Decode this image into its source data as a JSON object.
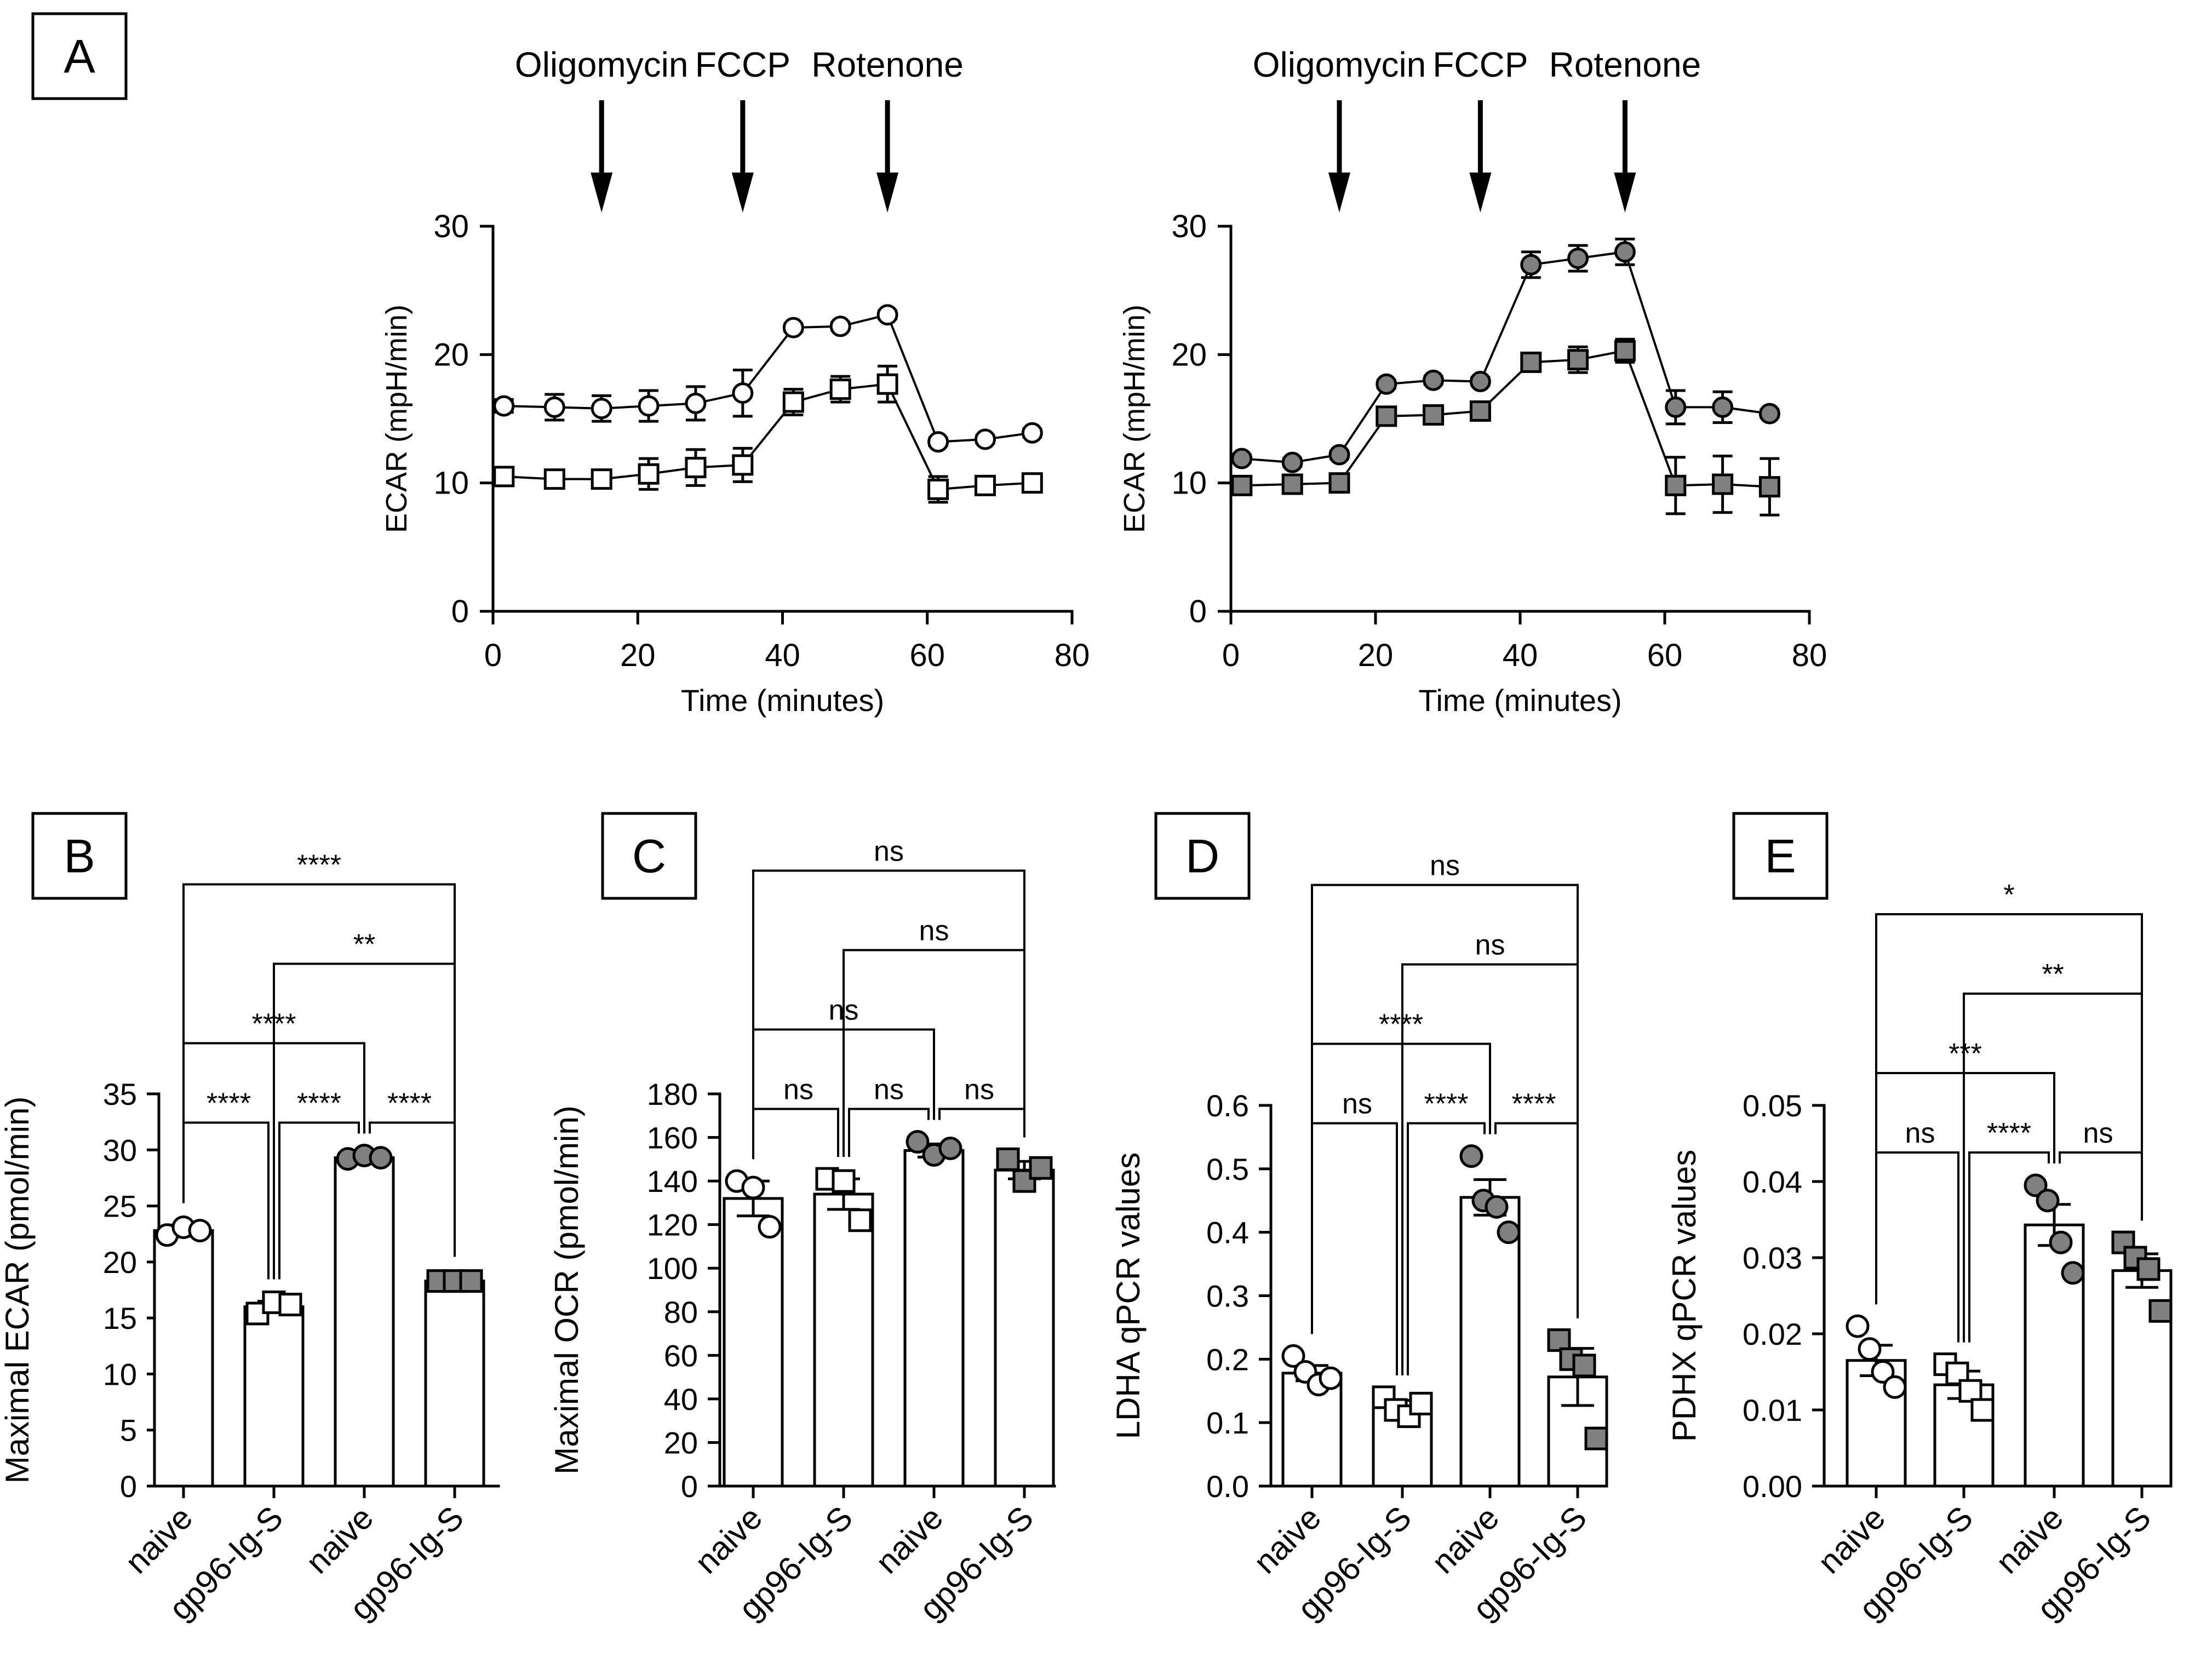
{
  "chart_data": [
    {
      "panel": "A",
      "type": "line",
      "ylabel": "ECAR (mpH/min)",
      "xlabel": "Time (minutes)",
      "xlim": [
        0,
        80
      ],
      "ylim": [
        0,
        30
      ],
      "xticks": [
        "0",
        "20",
        "40",
        "60",
        "80"
      ],
      "yticks": [
        "0",
        "10",
        "20",
        "30"
      ],
      "injections": [
        {
          "label": "Oligomycin",
          "time": 15
        },
        {
          "label": "FCCP",
          "time": 34.5
        },
        {
          "label": "Rotenone",
          "time": 54.5
        }
      ],
      "series": [
        {
          "marker": "circle",
          "fill": "#ffffff",
          "x": [
            1.5,
            8.5,
            15,
            21.5,
            28,
            34.5,
            41.5,
            48,
            54.5,
            61.5,
            68,
            74.5
          ],
          "y": [
            16,
            15.9,
            15.8,
            16,
            16.2,
            17,
            22.1,
            22.2,
            23.1,
            13.2,
            13.4,
            13.9
          ],
          "err": [
            0.5,
            1.0,
            1.0,
            1.2,
            1.3,
            1.8,
            0.3,
            0.3,
            0.3,
            0.3,
            0.3,
            0.3
          ]
        },
        {
          "marker": "square",
          "fill": "#ffffff",
          "x": [
            1.5,
            8.5,
            15,
            21.5,
            28,
            34.5,
            41.5,
            48,
            54.5,
            61.5,
            68,
            74.5
          ],
          "y": [
            10.5,
            10.3,
            10.3,
            10.7,
            11.2,
            11.4,
            16.3,
            17.3,
            17.7,
            9.5,
            9.8,
            10
          ],
          "err": [
            0.4,
            0.6,
            0.5,
            1.2,
            1.4,
            1.3,
            1.0,
            1.0,
            1.4,
            1.0,
            0.4,
            0.3
          ]
        }
      ]
    },
    {
      "panel": "",
      "type": "line",
      "ylabel": "ECAR (mpH/min)",
      "xlabel": "Time (minutes)",
      "xlim": [
        0,
        80
      ],
      "ylim": [
        0,
        30
      ],
      "xticks": [
        "0",
        "20",
        "40",
        "60",
        "80"
      ],
      "yticks": [
        "0",
        "10",
        "20",
        "30"
      ],
      "injections": [
        {
          "label": "Oligomycin",
          "time": 15
        },
        {
          "label": "FCCP",
          "time": 34.5
        },
        {
          "label": "Rotenone",
          "time": 54.5
        }
      ],
      "series": [
        {
          "marker": "circle",
          "fill": "#808080",
          "x": [
            1.5,
            8.5,
            15,
            21.5,
            28,
            34.5,
            41.5,
            48,
            54.5,
            61.5,
            68,
            74.5
          ],
          "y": [
            11.9,
            11.6,
            12.2,
            17.7,
            18,
            17.9,
            27,
            27.5,
            28,
            15.9,
            15.9,
            15.4
          ],
          "err": [
            0.3,
            0.3,
            0.3,
            0.3,
            0.3,
            0.3,
            1.0,
            1.0,
            1.0,
            1.3,
            1.2,
            0.3
          ]
        },
        {
          "marker": "square",
          "fill": "#808080",
          "x": [
            1.5,
            8.5,
            15,
            21.5,
            28,
            34.5,
            41.5,
            48,
            54.5,
            61.5,
            68,
            74.5
          ],
          "y": [
            9.8,
            9.9,
            10,
            15.2,
            15.3,
            15.6,
            19.4,
            19.6,
            20.3,
            9.8,
            9.9,
            9.7
          ],
          "err": [
            0.3,
            0.3,
            0.3,
            0.3,
            0.3,
            0.3,
            0.5,
            1.0,
            0.9,
            2.2,
            2.2,
            2.2
          ]
        }
      ]
    },
    {
      "panel": "B",
      "type": "bar",
      "ylabel": "Maximal ECAR (pmol/min)",
      "categories": [
        "naive",
        "gp96-Ig-S",
        "naive",
        "gp96-Ig-S"
      ],
      "ylim": [
        0,
        35
      ],
      "yticks": [
        "0",
        "5",
        "10",
        "15",
        "20",
        "25",
        "30",
        "35"
      ],
      "values": [
        22.8,
        16,
        29.3,
        18.3
      ],
      "errors": [
        0.5,
        0.5,
        0.2,
        0.2
      ],
      "markers": [
        "circle",
        "square",
        "circle",
        "square"
      ],
      "fills": [
        "#ffffff",
        "#ffffff",
        "#808080",
        "#808080"
      ],
      "points": [
        [
          22.4,
          23.1,
          22.8
        ],
        [
          15.4,
          16.4,
          16.2
        ],
        [
          29.2,
          29.5,
          29.3
        ],
        [
          18.3,
          18.3,
          18.3
        ]
      ],
      "comparisons": [
        {
          "from": 0,
          "to": 1,
          "label": "****"
        },
        {
          "from": 1,
          "to": 2,
          "label": "****"
        },
        {
          "from": 2,
          "to": 3,
          "label": "****"
        },
        {
          "from": 0,
          "to": 2,
          "label": "****"
        },
        {
          "from": 1,
          "to": 3,
          "label": "**"
        },
        {
          "from": 0,
          "to": 3,
          "label": "****"
        }
      ]
    },
    {
      "panel": "C",
      "type": "bar",
      "ylabel": "Maximal OCR (pmol/min)",
      "categories": [
        "naive",
        "gp96-Ig-S",
        "naive",
        "gp96-Ig-S"
      ],
      "ylim": [
        0,
        180
      ],
      "yticks": [
        "0",
        "20",
        "40",
        "60",
        "80",
        "100",
        "120",
        "140",
        "160",
        "180"
      ],
      "values": [
        132,
        134,
        154,
        145
      ],
      "errors": [
        8,
        7,
        3,
        4
      ],
      "markers": [
        "circle",
        "square",
        "circle",
        "square"
      ],
      "fills": [
        "#ffffff",
        "#ffffff",
        "#808080",
        "#808080"
      ],
      "points": [
        [
          140,
          137,
          119
        ],
        [
          141,
          140,
          122
        ],
        [
          158,
          152,
          155
        ],
        [
          150,
          140,
          146
        ]
      ],
      "comparisons": [
        {
          "from": 0,
          "to": 1,
          "label": "ns"
        },
        {
          "from": 1,
          "to": 2,
          "label": "ns"
        },
        {
          "from": 2,
          "to": 3,
          "label": "ns"
        },
        {
          "from": 0,
          "to": 2,
          "label": "ns"
        },
        {
          "from": 1,
          "to": 3,
          "label": "ns"
        },
        {
          "from": 0,
          "to": 3,
          "label": "ns"
        }
      ]
    },
    {
      "panel": "D",
      "type": "bar",
      "ylabel": "LDHA qPCR values",
      "categories": [
        "naive",
        "gp96-Ig-S",
        "naive",
        "gp96-Ig-S"
      ],
      "ylim": [
        0,
        0.6
      ],
      "yticks": [
        "0.0",
        "0.1",
        "0.2",
        "0.3",
        "0.4",
        "0.5",
        "0.6"
      ],
      "values": [
        0.178,
        0.125,
        0.455,
        0.172
      ],
      "errors": [
        0.012,
        0.01,
        0.028,
        0.045
      ],
      "markers": [
        "circle",
        "square",
        "circle",
        "square"
      ],
      "fills": [
        "#ffffff",
        "#ffffff",
        "#808080",
        "#808080"
      ],
      "points": [
        [
          0.205,
          0.18,
          0.16,
          0.17
        ],
        [
          0.14,
          0.12,
          0.11,
          0.13
        ],
        [
          0.52,
          0.45,
          0.44,
          0.4
        ],
        [
          0.23,
          0.2,
          0.19,
          0.075
        ]
      ],
      "comparisons": [
        {
          "from": 0,
          "to": 1,
          "label": "ns"
        },
        {
          "from": 1,
          "to": 2,
          "label": "****"
        },
        {
          "from": 2,
          "to": 3,
          "label": "****"
        },
        {
          "from": 0,
          "to": 2,
          "label": "****"
        },
        {
          "from": 1,
          "to": 3,
          "label": "ns"
        },
        {
          "from": 0,
          "to": 3,
          "label": "ns"
        }
      ]
    },
    {
      "panel": "E",
      "type": "bar",
      "ylabel": "PDHX qPCR values",
      "categories": [
        "naive",
        "gp96-Ig-S",
        "naive",
        "gp96-Ig-S"
      ],
      "ylim": [
        0,
        0.05
      ],
      "yticks": [
        "0.00",
        "0.01",
        "0.02",
        "0.03",
        "0.04",
        "0.05"
      ],
      "values": [
        0.0165,
        0.0133,
        0.0343,
        0.0283
      ],
      "errors": [
        0.002,
        0.0018,
        0.0027,
        0.0022
      ],
      "markers": [
        "circle",
        "square",
        "circle",
        "square"
      ],
      "fills": [
        "#ffffff",
        "#ffffff",
        "#808080",
        "#808080"
      ],
      "points": [
        [
          0.021,
          0.018,
          0.015,
          0.013
        ],
        [
          0.016,
          0.0148,
          0.0125,
          0.01
        ],
        [
          0.0395,
          0.0375,
          0.032,
          0.028
        ],
        [
          0.032,
          0.03,
          0.0285,
          0.023
        ]
      ],
      "comparisons": [
        {
          "from": 0,
          "to": 1,
          "label": "ns"
        },
        {
          "from": 1,
          "to": 2,
          "label": "****"
        },
        {
          "from": 2,
          "to": 3,
          "label": "ns"
        },
        {
          "from": 0,
          "to": 2,
          "label": "***"
        },
        {
          "from": 1,
          "to": 3,
          "label": "**"
        },
        {
          "from": 0,
          "to": 3,
          "label": "*"
        }
      ]
    }
  ]
}
